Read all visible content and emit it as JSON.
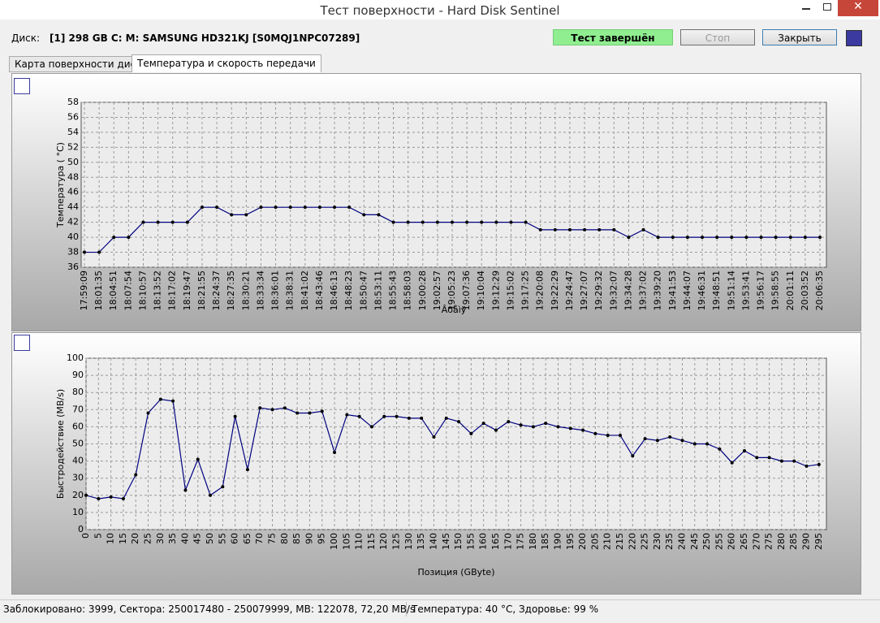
{
  "window": {
    "title": "Тест поверхности - Hard Disk Sentinel"
  },
  "toolbar": {
    "disk_label": "Диск:",
    "disk": "[1] 298 GB C: M: SAMSUNG HD321KJ [S0MQJ1NPC07289]",
    "status": "Тест завершён",
    "stop": "Стоп",
    "close": "Закрыть"
  },
  "tabs": [
    "Карта поверхности диска",
    "Температура и скорость передачи"
  ],
  "status_bar": [
    "Заблокировано: 3999, Сектора: 250017480 - 250079999, MB: 122078, 72,20 MB/s",
    "Температура: 40  °C,  Здоровье: 99 %"
  ],
  "chart_data": [
    {
      "type": "line",
      "y_label": "Температура ( °C)",
      "x_label": "Âðåìÿ",
      "color": "#000080",
      "grid": true,
      "categories": [
        "17:59:09",
        "18:01:35",
        "18:04:51",
        "18:07:54",
        "18:10:57",
        "18:13:52",
        "18:17:02",
        "18:19:47",
        "18:21:55",
        "18:24:37",
        "18:27:35",
        "18:30:21",
        "18:33:34",
        "18:36:01",
        "18:38:31",
        "18:41:02",
        "18:43:46",
        "18:46:13",
        "18:48:23",
        "18:50:47",
        "18:53:11",
        "18:55:43",
        "18:58:03",
        "19:00:28",
        "19:02:57",
        "19:05:23",
        "19:07:36",
        "19:10:04",
        "19:12:29",
        "19:15:02",
        "19:17:25",
        "19:20:08",
        "19:22:29",
        "19:24:47",
        "19:27:07",
        "19:29:32",
        "19:32:07",
        "19:34:28",
        "19:37:02",
        "19:39:20",
        "19:41:53",
        "19:44:07",
        "19:46:31",
        "19:48:51",
        "19:51:14",
        "19:53:41",
        "19:56:17",
        "19:58:55",
        "20:01:11",
        "20:03:52",
        "20:06:35"
      ],
      "values": [
        38,
        38,
        40,
        40,
        42,
        42,
        42,
        42,
        44,
        44,
        43,
        43,
        44,
        44,
        44,
        44,
        44,
        44,
        44,
        43,
        43,
        42,
        42,
        42,
        42,
        42,
        42,
        42,
        42,
        42,
        42,
        41,
        41,
        41,
        41,
        41,
        41,
        40,
        41,
        40,
        40,
        40,
        40,
        40,
        40,
        40,
        40,
        40,
        40,
        40,
        40
      ],
      "ylim": [
        36,
        58
      ],
      "yticks": [
        36,
        38,
        40,
        42,
        44,
        46,
        48,
        50,
        52,
        54,
        56,
        58
      ]
    },
    {
      "type": "line",
      "y_label": "Быстродействие (MB/s)",
      "x_label": "Позиция (GByte)",
      "color": "#000080",
      "grid": true,
      "x": [
        0,
        5,
        10,
        15,
        20,
        25,
        30,
        35,
        40,
        45,
        50,
        55,
        60,
        65,
        70,
        75,
        80,
        85,
        90,
        95,
        100,
        105,
        110,
        115,
        120,
        125,
        130,
        135,
        140,
        145,
        150,
        155,
        160,
        165,
        170,
        175,
        180,
        185,
        190,
        195,
        200,
        205,
        210,
        215,
        220,
        225,
        230,
        235,
        240,
        245,
        250,
        255,
        260,
        265,
        270,
        275,
        280,
        285,
        290,
        295
      ],
      "values": [
        20,
        18,
        19,
        18,
        32,
        68,
        76,
        75,
        23,
        41,
        20,
        25,
        66,
        35,
        71,
        70,
        71,
        68,
        68,
        69,
        45,
        67,
        66,
        60,
        66,
        66,
        65,
        65,
        54,
        65,
        63,
        56,
        62,
        58,
        63,
        61,
        60,
        62,
        60,
        59,
        58,
        56,
        55,
        55,
        43,
        53,
        52,
        54,
        52,
        50,
        50,
        47,
        39,
        46,
        42,
        42,
        40,
        40,
        37,
        38
      ],
      "xlim": [
        0,
        298
      ],
      "xticks": [
        0,
        5,
        10,
        15,
        20,
        25,
        30,
        35,
        40,
        45,
        50,
        55,
        60,
        65,
        70,
        75,
        80,
        85,
        90,
        95,
        100,
        105,
        110,
        115,
        120,
        125,
        130,
        135,
        140,
        145,
        150,
        155,
        160,
        165,
        170,
        175,
        180,
        185,
        190,
        195,
        200,
        205,
        210,
        215,
        220,
        225,
        230,
        235,
        240,
        245,
        250,
        255,
        260,
        265,
        270,
        275,
        280,
        285,
        290,
        295
      ],
      "ylim": [
        0,
        100
      ],
      "yticks": [
        0,
        10,
        20,
        30,
        40,
        50,
        60,
        70,
        80,
        90,
        100
      ]
    }
  ]
}
